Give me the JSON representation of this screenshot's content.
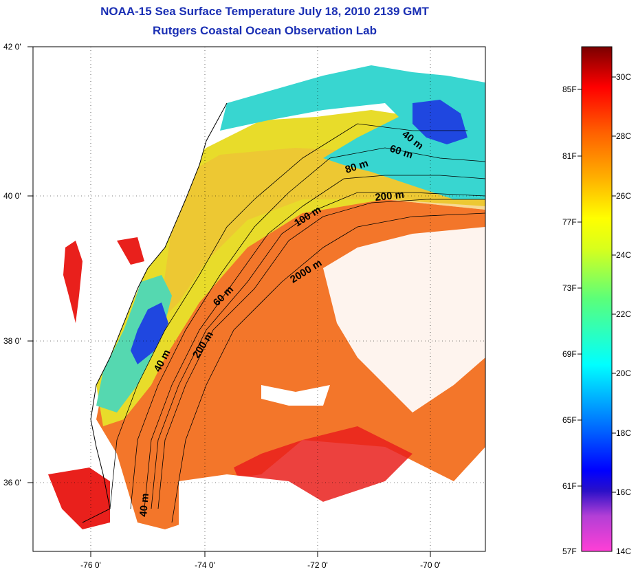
{
  "title_line1": "NOAA-15 Sea Surface Temperature July 18, 2010 2139 GMT",
  "title_line2": "Rutgers Coastal Ocean Observation Lab",
  "lat_labels": [
    "42 0'",
    "40 0'",
    "38 0'",
    "36 0'"
  ],
  "lon_labels": [
    "-76 0'",
    "-74 0'",
    "-72 0'",
    "-70 0'"
  ],
  "depth_labels": [
    "40 m",
    "60 m",
    "80 m",
    "200 m",
    "100 m",
    "2000 m",
    "60 m",
    "200 m",
    "40 m",
    "40 m"
  ],
  "colorbar": {
    "f_labels": [
      "85F",
      "81F",
      "77F",
      "73F",
      "69F",
      "65F",
      "61F",
      "57F"
    ],
    "c_labels": [
      "30C",
      "28C",
      "26C",
      "24C",
      "22C",
      "20C",
      "18C",
      "16C",
      "14C"
    ]
  },
  "colors": {
    "title": "#1a2fb4",
    "warm_water": "#f3762a",
    "hot_water": "#e9201c",
    "shelf_water": "#e8dc2a",
    "cool_water": "#38d6d0",
    "cold_water": "#1f47e0"
  }
}
